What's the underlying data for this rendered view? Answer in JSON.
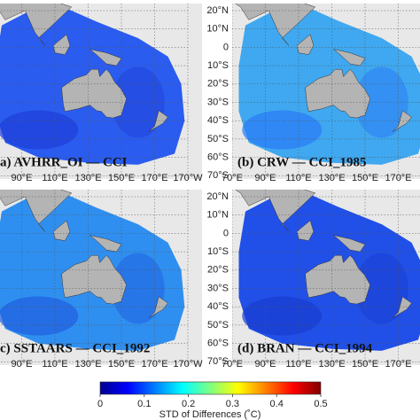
{
  "panels": [
    {
      "label": "a) AVHRR_OI — CCI"
    },
    {
      "label": "(b) CRW — CCI_1985"
    },
    {
      "label": "c) SSTAARS — CCI_1992"
    },
    {
      "label": "(d) BRAN — CCI_1994"
    }
  ],
  "lon_ticks": [
    "70°E",
    "90°E",
    "110°E",
    "130°E",
    "150°E",
    "170°E",
    "170°W"
  ],
  "lat_ticks": [
    "20°N",
    "10°N",
    "0",
    "10°S",
    "20°S",
    "30°S",
    "40°S",
    "50°S",
    "60°S",
    "70°S"
  ],
  "colorbar": {
    "range": [
      0,
      0.5
    ],
    "ticks": [
      0,
      0.1,
      0.2,
      0.3,
      0.4,
      0.5
    ],
    "label": "STD of Differences (˚C)"
  }
}
